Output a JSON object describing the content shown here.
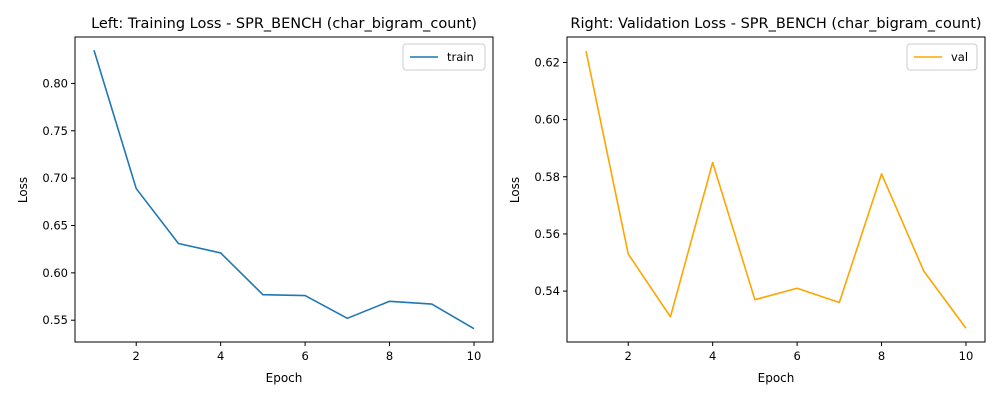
{
  "chart_data": [
    {
      "type": "line",
      "title": "Left: Training Loss - SPR_BENCH (char_bigram_count)",
      "xlabel": "Epoch",
      "ylabel": "Loss",
      "xlim": [
        0.55,
        10.45
      ],
      "ylim": [
        0.527,
        0.849
      ],
      "xticks": [
        2,
        4,
        6,
        8,
        10
      ],
      "yticks": [
        0.55,
        0.6,
        0.65,
        0.7,
        0.75,
        0.8
      ],
      "ytick_labels": [
        "0.55",
        "0.60",
        "0.65",
        "0.70",
        "0.75",
        "0.80"
      ],
      "grid": false,
      "legend_position": "top-right",
      "series": [
        {
          "name": "train",
          "color": "#1f77b4",
          "x": [
            1,
            2,
            3,
            4,
            5,
            6,
            7,
            8,
            9,
            10
          ],
          "values": [
            0.835,
            0.689,
            0.631,
            0.621,
            0.577,
            0.576,
            0.552,
            0.57,
            0.567,
            0.541
          ]
        }
      ]
    },
    {
      "type": "line",
      "title": "Right: Validation Loss - SPR_BENCH (char_bigram_count)",
      "xlabel": "Epoch",
      "ylabel": "Loss",
      "xlim": [
        0.55,
        10.45
      ],
      "ylim": [
        0.5222,
        0.6289
      ],
      "xticks": [
        2,
        4,
        6,
        8,
        10
      ],
      "yticks": [
        0.54,
        0.56,
        0.58,
        0.6,
        0.62
      ],
      "ytick_labels": [
        "0.54",
        "0.56",
        "0.58",
        "0.60",
        "0.62"
      ],
      "grid": false,
      "legend_position": "top-right",
      "series": [
        {
          "name": "val",
          "color": "#ffa500",
          "x": [
            1,
            2,
            3,
            4,
            5,
            6,
            7,
            8,
            9,
            10
          ],
          "values": [
            0.624,
            0.553,
            0.531,
            0.585,
            0.537,
            0.541,
            0.536,
            0.581,
            0.547,
            0.527
          ]
        }
      ]
    }
  ]
}
